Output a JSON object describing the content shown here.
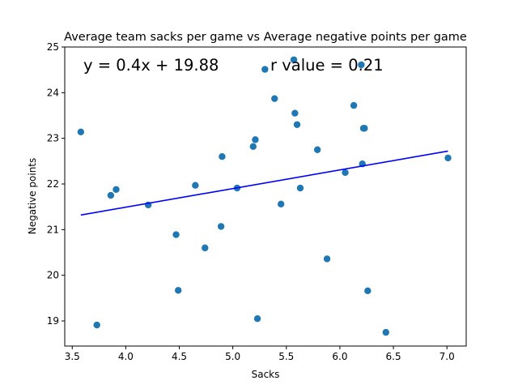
{
  "chart_data": {
    "type": "scatter",
    "title": "Average team sacks per game vs Average negative points per game",
    "xlabel": "Sacks",
    "ylabel": "Negative points",
    "xlim": [
      3.43,
      7.18
    ],
    "ylim": [
      18.45,
      25.0
    ],
    "xticks": [
      3.5,
      4.0,
      4.5,
      5.0,
      5.5,
      6.0,
      6.5,
      7.0
    ],
    "xtick_labels": [
      "3.5",
      "4.0",
      "4.5",
      "5.0",
      "5.5",
      "6.0",
      "6.5",
      "7.0"
    ],
    "yticks": [
      19,
      20,
      21,
      22,
      23,
      24,
      25
    ],
    "ytick_labels": [
      "19",
      "20",
      "21",
      "22",
      "23",
      "24",
      "25"
    ],
    "grid": false,
    "point_color": "#1f77b4",
    "line_color": "#0000ff",
    "series": [
      {
        "type": "scatter",
        "x": [
          3.58,
          3.73,
          3.86,
          3.91,
          4.21,
          4.47,
          4.49,
          4.65,
          4.74,
          4.89,
          4.9,
          5.04,
          5.19,
          5.21,
          5.23,
          5.3,
          5.39,
          5.45,
          5.57,
          5.58,
          5.6,
          5.63,
          5.79,
          5.88,
          6.05,
          6.13,
          6.2,
          6.21,
          6.22,
          6.23,
          6.26,
          6.43,
          7.01
        ],
        "y": [
          23.14,
          18.91,
          21.75,
          21.88,
          21.54,
          20.89,
          19.67,
          21.97,
          20.6,
          21.07,
          22.6,
          21.91,
          22.82,
          22.97,
          19.05,
          24.51,
          23.87,
          21.56,
          24.72,
          23.55,
          23.3,
          21.91,
          22.75,
          20.36,
          22.25,
          23.72,
          24.61,
          22.44,
          23.22,
          23.22,
          19.66,
          18.75,
          22.57
        ]
      },
      {
        "type": "line",
        "x": [
          3.58,
          7.01
        ],
        "y": [
          21.32,
          22.72
        ]
      }
    ],
    "annotations": [
      {
        "text": "y = 0.4x + 19.88",
        "x": 3.58,
        "y": 24.5
      },
      {
        "text": "r value = 0.21",
        "x": 5.35,
        "y": 24.5
      }
    ]
  }
}
